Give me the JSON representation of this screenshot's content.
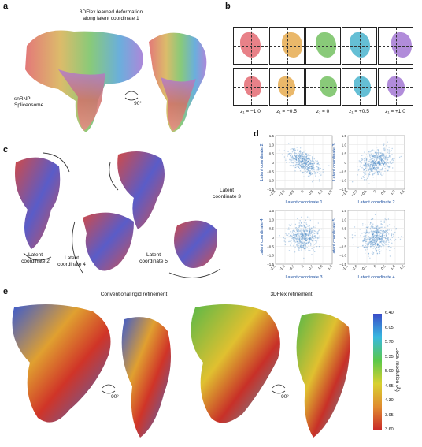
{
  "panels": {
    "a": "a",
    "b": "b",
    "c": "c",
    "d": "d",
    "e": "e"
  },
  "panel_a": {
    "title_line1": "3DFlex learned deformation",
    "title_line2": "along latent coordinate 1",
    "structure_line1": "snRNP",
    "structure_line2": "Spliceosome",
    "rotation": "90°"
  },
  "panel_b": {
    "z_labels": [
      "z₁ = −1.0",
      "z₁ = −0.5",
      "z₁ = 0",
      "z₁ = +0.5",
      "z₁ = +1.0"
    ],
    "colors": [
      "#e5737b",
      "#e8b05a",
      "#7cc46a",
      "#54b8d0",
      "#a87fd6"
    ]
  },
  "panel_c": {
    "labels": [
      "Latent coordinate 2",
      "Latent coordinate 4",
      "Latent coordinate 5",
      "Latent coordinate 3"
    ]
  },
  "panel_d": {
    "ticks": [
      "1.5",
      "1.0",
      "0.5",
      "0",
      "−0.5",
      "−1.0",
      "−1.5"
    ],
    "xticks": [
      "−1.5",
      "−1.0",
      "−0.5",
      "0",
      "0.5",
      "1.0",
      "1.5"
    ],
    "plots": [
      {
        "xlabel": "Latent coordinate 1",
        "ylabel": "Latent coordinate 2",
        "corr": "neg"
      },
      {
        "xlabel": "Latent coordinate 2",
        "ylabel": "Latent coordinate 3",
        "corr": "pos"
      },
      {
        "xlabel": "Latent coordinate 3",
        "ylabel": "Latent coordinate 4",
        "corr": "none"
      },
      {
        "xlabel": "Latent coordinate 4",
        "ylabel": "Latent coordinate 5",
        "corr": "none"
      }
    ],
    "color": "#3a7fc0"
  },
  "panel_e": {
    "title_left": "Conventional rigid refinement",
    "title_right": "3DFlex refinement",
    "rotation": "90°",
    "colorbar_title": "Local resolution (Å)",
    "colorbar_ticks": [
      "6.40",
      "6.05",
      "5.70",
      "5.35",
      "5.00",
      "4.65",
      "4.30",
      "3.95",
      "3.60"
    ]
  }
}
